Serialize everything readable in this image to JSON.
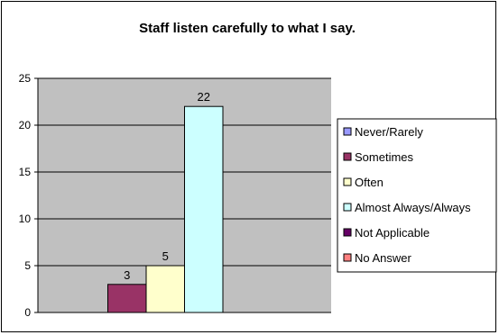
{
  "chart_data": {
    "type": "bar",
    "title": "Staff listen carefully to what I say.",
    "xlabel": "",
    "ylabel": "",
    "ylim": [
      0,
      25
    ],
    "yticks": [
      0,
      5,
      10,
      15,
      20,
      25
    ],
    "grid": true,
    "legend_position": "right",
    "plot_background": "#c0c0c0",
    "categories": [
      "Never/Rarely",
      "Sometimes",
      "Often",
      "Almost Always/Always",
      "Not Applicable",
      "No Answer"
    ],
    "values": [
      0,
      3,
      5,
      22,
      0,
      0
    ],
    "data_labels": [
      "",
      "3",
      "5",
      "22",
      "",
      ""
    ],
    "colors": [
      "#9999ff",
      "#993366",
      "#ffffcc",
      "#ccffff",
      "#660066",
      "#ff8080"
    ]
  }
}
